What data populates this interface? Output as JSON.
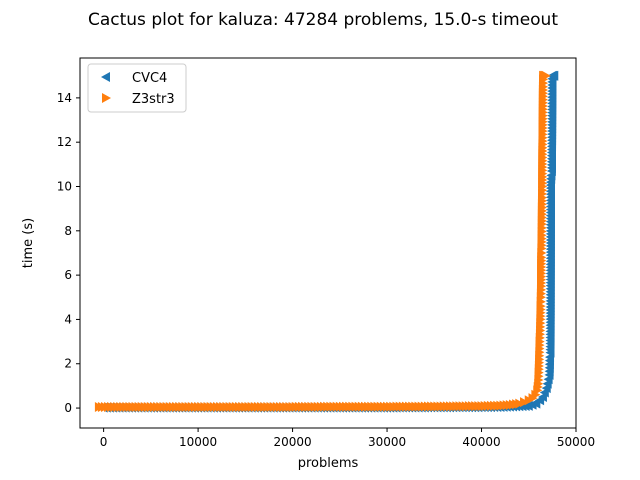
{
  "chart_data": {
    "type": "scatter",
    "title": "Cactus plot for kaluza: 47284 problems, 15.0-s timeout",
    "xlabel": "problems",
    "ylabel": "time (s)",
    "xlim": [
      -2500,
      50000
    ],
    "ylim": [
      -0.9,
      15.8
    ],
    "xticks": [
      0,
      10000,
      20000,
      30000,
      40000,
      50000
    ],
    "xtick_labels": [
      "0",
      "10000",
      "20000",
      "30000",
      "40000",
      "50000"
    ],
    "yticks": [
      0,
      2,
      4,
      6,
      8,
      10,
      12,
      14
    ],
    "ytick_labels": [
      "0",
      "2",
      "4",
      "6",
      "8",
      "10",
      "12",
      "14"
    ],
    "grid": false,
    "legend_position": "top-left",
    "series": [
      {
        "name": "CVC4",
        "marker": "triangle-left",
        "color": "#1f77b4",
        "points": [
          [
            0,
            0.02
          ],
          [
            5000,
            0.02
          ],
          [
            10000,
            0.02
          ],
          [
            15000,
            0.02
          ],
          [
            20000,
            0.02
          ],
          [
            25000,
            0.02
          ],
          [
            30000,
            0.02
          ],
          [
            35000,
            0.03
          ],
          [
            40000,
            0.04
          ],
          [
            42000,
            0.05
          ],
          [
            44000,
            0.08
          ],
          [
            45000,
            0.1
          ],
          [
            45800,
            0.2
          ],
          [
            46200,
            0.35
          ],
          [
            46500,
            0.5
          ],
          [
            46700,
            0.7
          ],
          [
            46900,
            0.9
          ],
          [
            47000,
            1.1
          ],
          [
            47100,
            1.3
          ],
          [
            47200,
            1.5
          ],
          [
            47250,
            2.3
          ],
          [
            47300,
            2.5
          ],
          [
            47350,
            10.2
          ],
          [
            47400,
            10.5
          ],
          [
            47450,
            10.7
          ],
          [
            47500,
            15.0
          ],
          [
            47600,
            15.0
          ],
          [
            47700,
            15.0
          ]
        ]
      },
      {
        "name": "Z3str3",
        "marker": "triangle-right",
        "color": "#ff7f0e",
        "points": [
          [
            -500,
            0.05
          ],
          [
            5000,
            0.05
          ],
          [
            10000,
            0.05
          ],
          [
            15000,
            0.05
          ],
          [
            20000,
            0.05
          ],
          [
            25000,
            0.06
          ],
          [
            30000,
            0.06
          ],
          [
            35000,
            0.07
          ],
          [
            40000,
            0.09
          ],
          [
            42000,
            0.11
          ],
          [
            43000,
            0.14
          ],
          [
            44000,
            0.2
          ],
          [
            44500,
            0.27
          ],
          [
            45000,
            0.35
          ],
          [
            45400,
            0.45
          ],
          [
            45700,
            0.6
          ],
          [
            45900,
            0.8
          ],
          [
            46000,
            1.1
          ],
          [
            46050,
            1.6
          ],
          [
            46100,
            2.2
          ],
          [
            46150,
            3.0
          ],
          [
            46200,
            3.5
          ],
          [
            46230,
            4.0
          ],
          [
            46250,
            4.6
          ],
          [
            46280,
            5.0
          ],
          [
            46300,
            5.5
          ],
          [
            46320,
            6.8
          ],
          [
            46340,
            7.2
          ],
          [
            46360,
            7.8
          ],
          [
            46380,
            8.3
          ],
          [
            46400,
            9.5
          ],
          [
            46420,
            10.0
          ],
          [
            46440,
            11.6
          ],
          [
            46460,
            12.5
          ],
          [
            46480,
            13.2
          ],
          [
            46500,
            14.5
          ],
          [
            46520,
            15.0
          ],
          [
            46600,
            15.0
          ],
          [
            46700,
            15.0
          ],
          [
            46800,
            15.0
          ]
        ]
      }
    ]
  }
}
